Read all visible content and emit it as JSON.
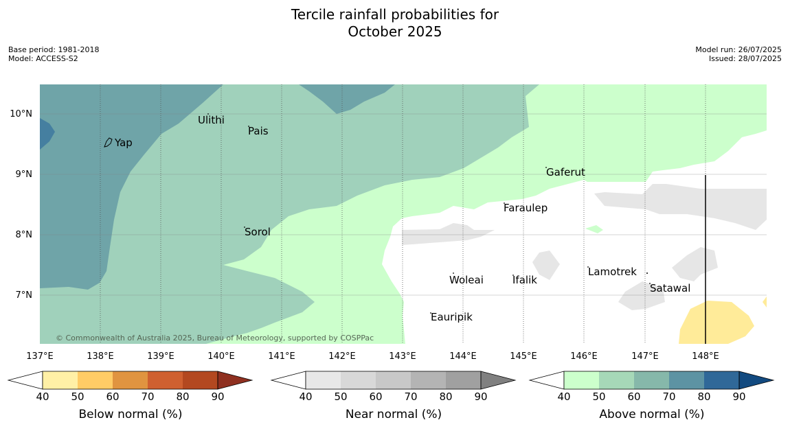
{
  "header": {
    "title_line1": "Tercile rainfall probabilities for",
    "title_line2": "October 2025",
    "base_period": "Base period: 1981-2018",
    "model": "Model: ACCESS-S2",
    "model_run": "Model run: 26/07/2025",
    "issued": "Issued: 28/07/2025"
  },
  "map": {
    "lat_ticks": [
      "10°N",
      "9°N",
      "8°N",
      "7°N"
    ],
    "lon_ticks": [
      "137°E",
      "138°E",
      "139°E",
      "140°E",
      "141°E",
      "142°E",
      "143°E",
      "144°E",
      "145°E",
      "146°E",
      "147°E",
      "148°E"
    ],
    "places": [
      "Yap",
      "Ulithi",
      "Pais",
      "Gaferut",
      "Faraulep",
      "Sorol",
      "Woleai",
      "Ifalik",
      "Lamotrek",
      "Satawal",
      "Eauripik"
    ],
    "copyright": "© Commonwealth of Australia 2025, Bureau of Meteorology, supported by COSPPac"
  },
  "legend": {
    "below": {
      "label": "Below normal (%)",
      "ticks": [
        "40",
        "50",
        "60",
        "70",
        "80",
        "90"
      ],
      "colors": [
        "#fff0a6",
        "#ffcc66",
        "#e09440",
        "#cf6030",
        "#b34820",
        "#8f3020"
      ]
    },
    "near": {
      "label": "Near normal (%)",
      "ticks": [
        "40",
        "50",
        "60",
        "70",
        "80",
        "90"
      ],
      "colors": [
        "#e8e8e8",
        "#d8d8d8",
        "#c8c8c8",
        "#b4b4b4",
        "#a0a0a0",
        "#808080"
      ]
    },
    "above": {
      "label": "Above normal (%)",
      "ticks": [
        "40",
        "50",
        "60",
        "70",
        "80",
        "90"
      ],
      "colors": [
        "#ccffcc",
        "#a6d8b8",
        "#86b8aa",
        "#5d93a3",
        "#306898",
        "#124a80"
      ]
    }
  }
}
